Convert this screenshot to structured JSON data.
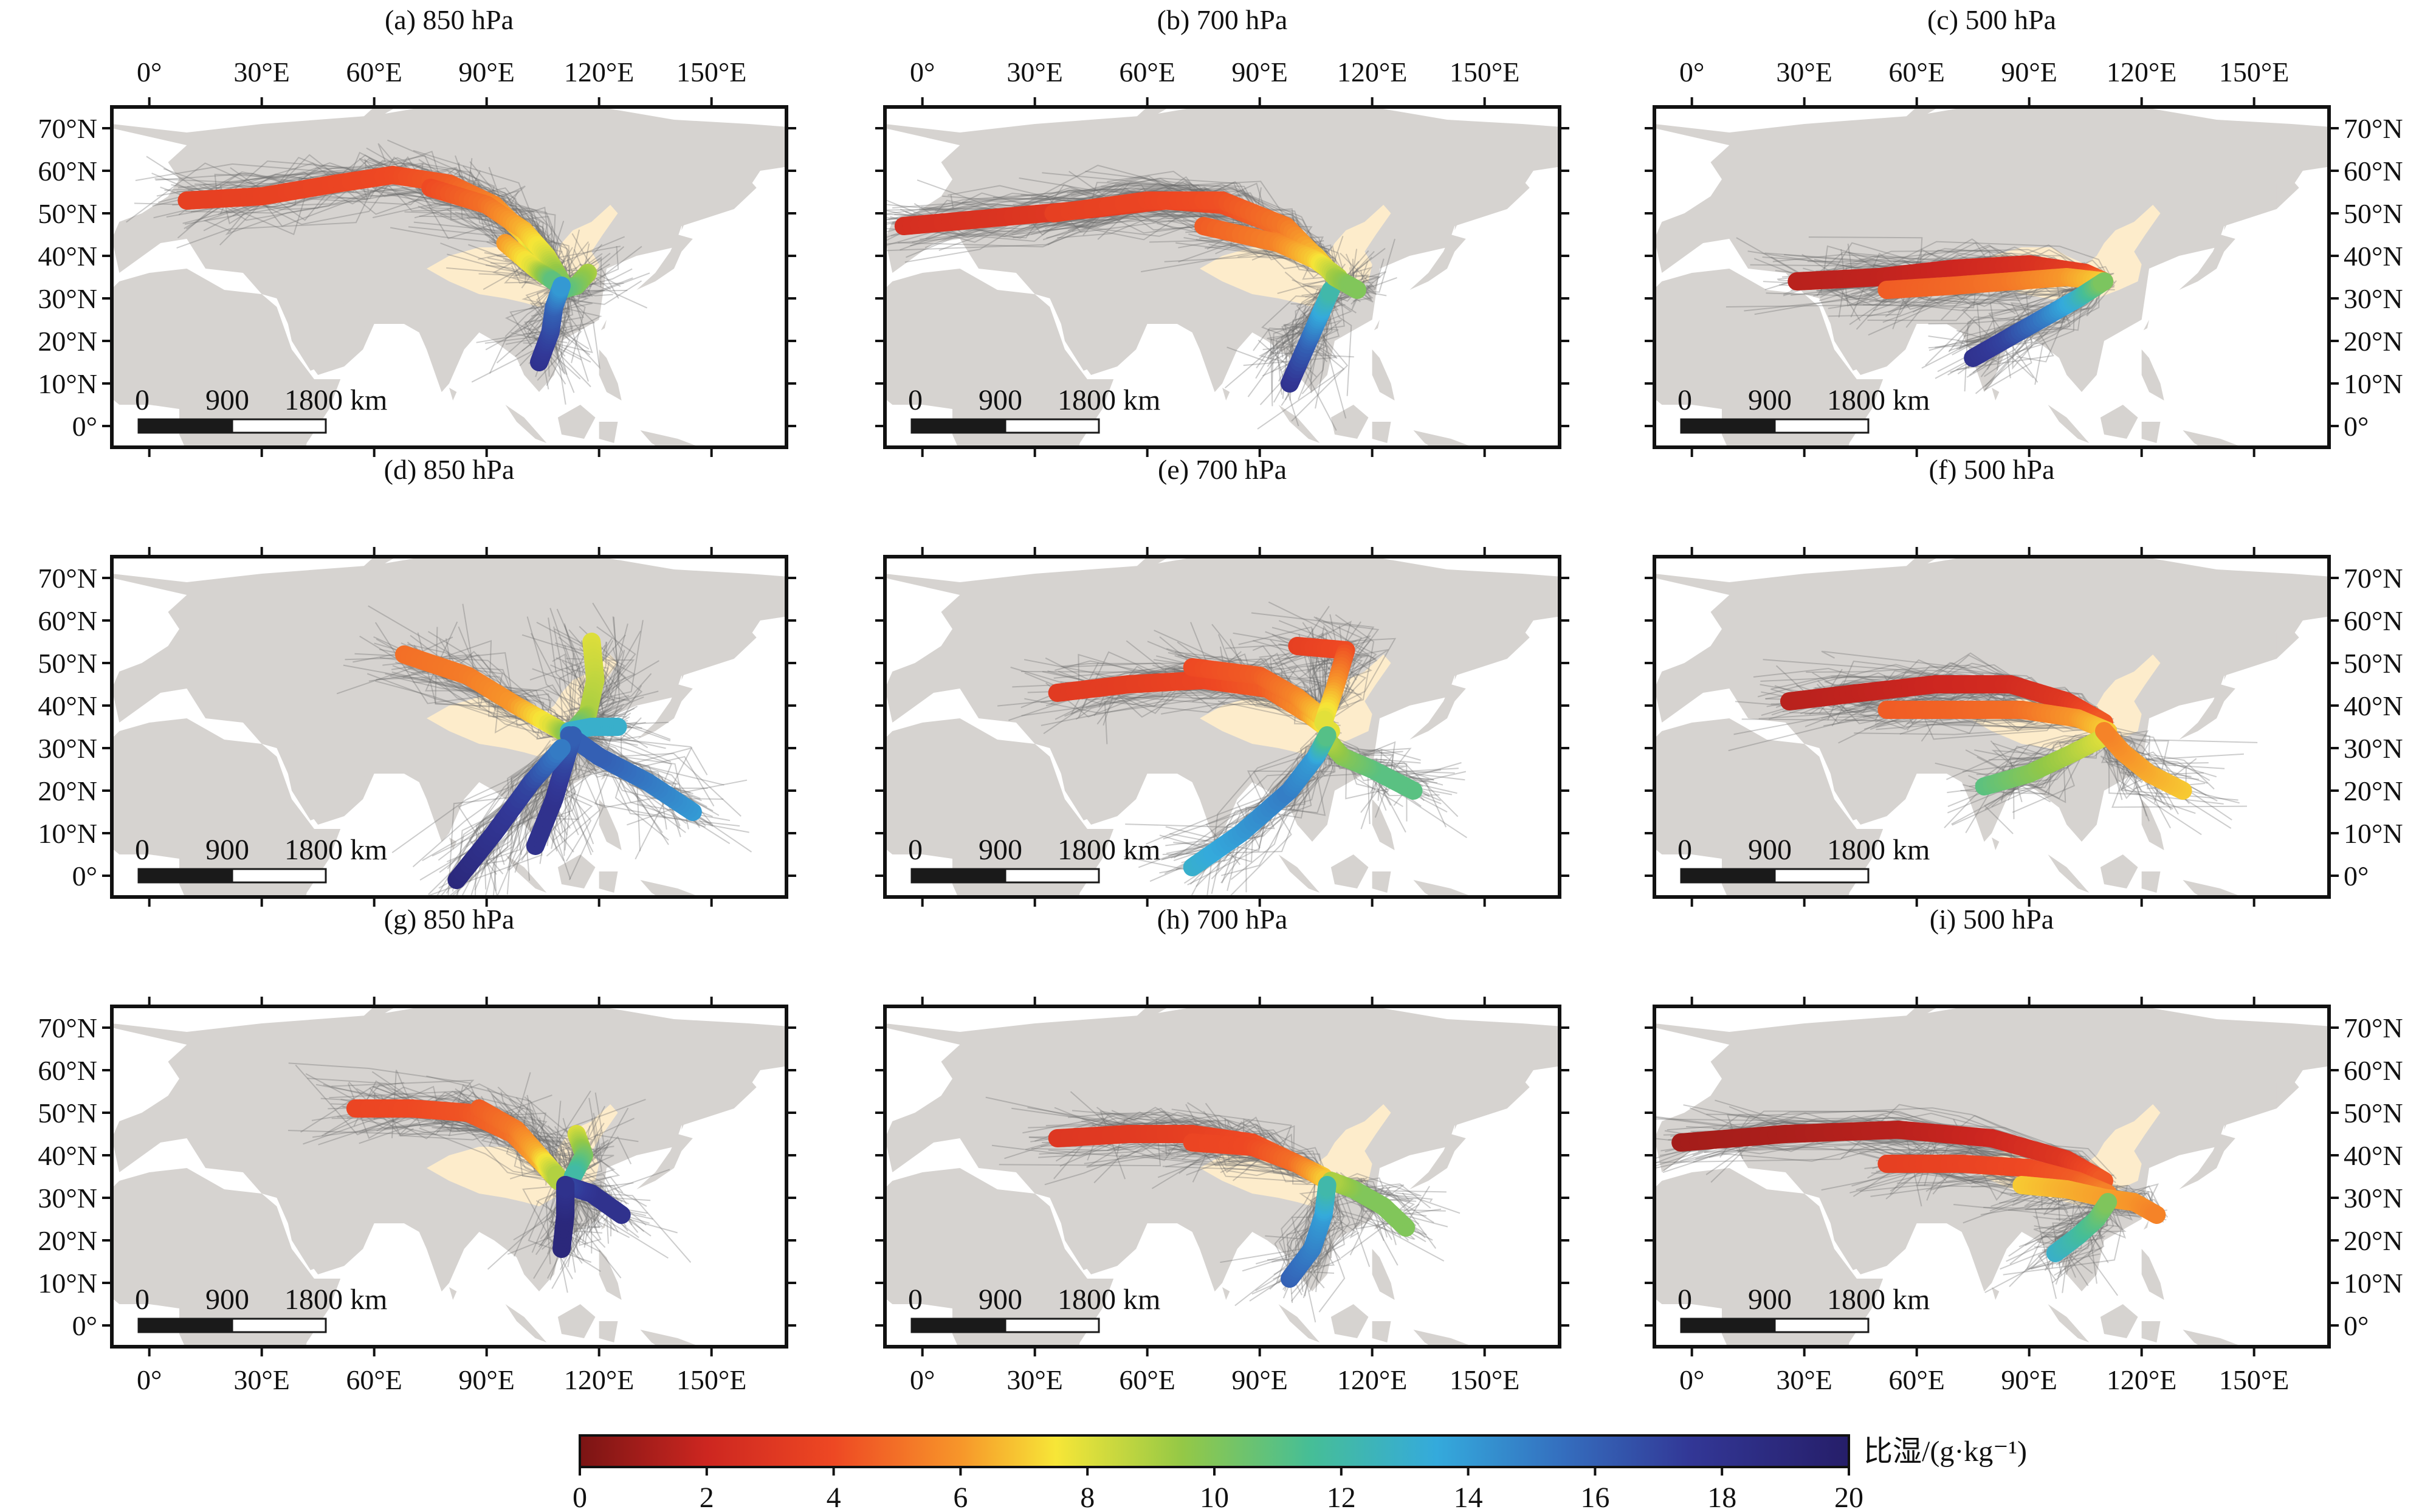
{
  "panels": [
    {
      "title": "(a) 850 hPa"
    },
    {
      "title": "(b) 700 hPa"
    },
    {
      "title": "(c) 500 hPa"
    },
    {
      "title": "(d) 850 hPa"
    },
    {
      "title": "(e) 700 hPa"
    },
    {
      "title": "(f) 500 hPa"
    },
    {
      "title": "(g) 850 hPa"
    },
    {
      "title": "(h) 700 hPa"
    },
    {
      "title": "(i) 500 hPa"
    }
  ],
  "lon_ticks": [
    "0°",
    "30°E",
    "60°E",
    "90°E",
    "120°E",
    "150°E"
  ],
  "lat_ticks": [
    "0°",
    "10°N",
    "20°N",
    "30°N",
    "40°N",
    "50°N",
    "60°N",
    "70°N"
  ],
  "scale_bar": [
    "0",
    "900",
    "1800 km"
  ],
  "colorbar": {
    "title": "比湿/(g·kg⁻¹)",
    "ticks": [
      "0",
      "2",
      "4",
      "6",
      "8",
      "10",
      "12",
      "14",
      "16",
      "18",
      "20"
    ],
    "min": 0,
    "max": 20
  },
  "colors": {
    "land": "#d6d3d0",
    "study_region": "#fdeccb",
    "trajectory_gray": "#6e6e6e",
    "frame": "#111111"
  },
  "cluster_paths": [
    [
      {
        "pts": [
          [
            10,
            53
          ],
          [
            30,
            54
          ],
          [
            50,
            57
          ],
          [
            65,
            59
          ],
          [
            80,
            57
          ],
          [
            92,
            52
          ],
          [
            100,
            45
          ],
          [
            106,
            38
          ],
          [
            110,
            33
          ]
        ],
        "q": [
          3.5,
          3.6,
          3.8,
          4,
          4.5,
          5.5,
          7,
          9,
          11
        ]
      },
      {
        "pts": [
          [
            75,
            56
          ],
          [
            90,
            52
          ],
          [
            100,
            46
          ],
          [
            106,
            40
          ],
          [
            110,
            34
          ]
        ],
        "q": [
          4,
          5,
          6.5,
          8,
          10
        ]
      },
      {
        "pts": [
          [
            95,
            43
          ],
          [
            103,
            37
          ],
          [
            108,
            34
          ]
        ],
        "q": [
          6,
          8,
          11
        ]
      },
      {
        "pts": [
          [
            117,
            36
          ],
          [
            114,
            33
          ],
          [
            110,
            32
          ]
        ],
        "q": [
          9,
          10,
          11
        ]
      },
      {
        "pts": [
          [
            104,
            15
          ],
          [
            107,
            22
          ],
          [
            108,
            28
          ],
          [
            110,
            33
          ]
        ],
        "q": [
          18,
          17,
          16,
          14
        ]
      }
    ],
    [
      {
        "pts": [
          [
            -5,
            47
          ],
          [
            20,
            49
          ],
          [
            45,
            51
          ],
          [
            65,
            53
          ],
          [
            80,
            52
          ],
          [
            95,
            47
          ],
          [
            105,
            40
          ],
          [
            110,
            35
          ]
        ],
        "q": [
          2.5,
          2.8,
          3.2,
          3.6,
          4,
          5,
          7,
          9
        ]
      },
      {
        "pts": [
          [
            35,
            50
          ],
          [
            60,
            53
          ],
          [
            80,
            53
          ],
          [
            97,
            47
          ],
          [
            107,
            38
          ]
        ],
        "q": [
          3.5,
          3.8,
          4.2,
          5.2,
          7
        ]
      },
      {
        "pts": [
          [
            75,
            47
          ],
          [
            95,
            43
          ],
          [
            105,
            39
          ],
          [
            111,
            35
          ]
        ],
        "q": [
          4.5,
          5.5,
          7,
          9
        ]
      },
      {
        "pts": [
          [
            98,
            10
          ],
          [
            103,
            20
          ],
          [
            106,
            26
          ],
          [
            109,
            32
          ]
        ],
        "q": [
          18,
          16,
          14,
          12
        ]
      },
      {
        "pts": [
          [
            110,
            35
          ],
          [
            114,
            33
          ],
          [
            116,
            32
          ]
        ],
        "q": [
          9,
          10,
          10
        ]
      }
    ],
    [
      {
        "pts": [
          [
            28,
            34
          ],
          [
            50,
            35
          ],
          [
            70,
            37
          ],
          [
            90,
            38
          ],
          [
            105,
            36
          ],
          [
            110,
            34
          ]
        ],
        "q": [
          1.5,
          1.7,
          2,
          2.6,
          3.5,
          5
        ]
      },
      {
        "pts": [
          [
            52,
            32
          ],
          [
            70,
            33
          ],
          [
            85,
            34
          ],
          [
            100,
            35
          ],
          [
            110,
            34
          ]
        ],
        "q": [
          4.5,
          4.8,
          5.2,
          6,
          7
        ]
      },
      {
        "pts": [
          [
            75,
            16
          ],
          [
            85,
            21
          ],
          [
            95,
            26
          ],
          [
            103,
            30
          ],
          [
            110,
            34
          ]
        ],
        "q": [
          18,
          17,
          15,
          13,
          10
        ]
      }
    ],
    [
      {
        "pts": [
          [
            68,
            52
          ],
          [
            85,
            47
          ],
          [
            98,
            40
          ],
          [
            108,
            35
          ],
          [
            112,
            33
          ]
        ],
        "q": [
          5,
          5.3,
          6,
          8,
          10
        ]
      },
      {
        "pts": [
          [
            118,
            55
          ],
          [
            119,
            46
          ],
          [
            117,
            38
          ],
          [
            113,
            34
          ]
        ],
        "q": [
          8,
          8.5,
          9,
          11
        ]
      },
      {
        "pts": [
          [
            125,
            35
          ],
          [
            118,
            35
          ],
          [
            112,
            34
          ]
        ],
        "q": [
          13,
          13,
          13
        ]
      },
      {
        "pts": [
          [
            145,
            15
          ],
          [
            133,
            22
          ],
          [
            120,
            28
          ],
          [
            112,
            33
          ]
        ],
        "q": [
          14,
          15,
          16,
          16
        ]
      },
      {
        "pts": [
          [
            103,
            7
          ],
          [
            108,
            18
          ],
          [
            111,
            27
          ],
          [
            113,
            33
          ]
        ],
        "q": [
          18,
          18,
          17,
          16
        ]
      },
      {
        "pts": [
          [
            82,
            -1
          ],
          [
            92,
            10
          ],
          [
            102,
            22
          ],
          [
            110,
            30
          ]
        ],
        "q": [
          19,
          18,
          17,
          15
        ]
      }
    ],
    [
      {
        "pts": [
          [
            36,
            43
          ],
          [
            55,
            45
          ],
          [
            75,
            46
          ],
          [
            92,
            44
          ],
          [
            103,
            38
          ],
          [
            109,
            34
          ]
        ],
        "q": [
          3.2,
          3.4,
          3.8,
          4.5,
          6,
          8
        ]
      },
      {
        "pts": [
          [
            72,
            49
          ],
          [
            90,
            47
          ],
          [
            100,
            42
          ],
          [
            107,
            37
          ]
        ],
        "q": [
          4,
          4.5,
          5.5,
          7
        ]
      },
      {
        "pts": [
          [
            100,
            54
          ],
          [
            113,
            53
          ],
          [
            110,
            44
          ],
          [
            107,
            36
          ]
        ],
        "q": [
          3.5,
          4,
          6,
          8
        ]
      },
      {
        "pts": [
          [
            131,
            20
          ],
          [
            120,
            25
          ],
          [
            112,
            28
          ],
          [
            108,
            32
          ]
        ],
        "q": [
          11,
          11,
          10,
          9
        ]
      },
      {
        "pts": [
          [
            72,
            2
          ],
          [
            85,
            10
          ],
          [
            98,
            20
          ],
          [
            105,
            28
          ],
          [
            108,
            33
          ]
        ],
        "q": [
          13,
          14,
          15,
          14,
          11
        ]
      }
    ],
    [
      {
        "pts": [
          [
            26,
            41
          ],
          [
            45,
            43
          ],
          [
            65,
            45
          ],
          [
            85,
            45
          ],
          [
            100,
            41
          ],
          [
            110,
            36
          ]
        ],
        "q": [
          1.5,
          1.7,
          2,
          2.3,
          3,
          4.5
        ]
      },
      {
        "pts": [
          [
            52,
            39
          ],
          [
            70,
            39
          ],
          [
            88,
            39
          ],
          [
            103,
            37
          ],
          [
            111,
            34
          ]
        ],
        "q": [
          4.5,
          4.7,
          5,
          6,
          7
        ]
      },
      {
        "pts": [
          [
            78,
            21
          ],
          [
            90,
            24
          ],
          [
            102,
            29
          ],
          [
            111,
            33
          ]
        ],
        "q": [
          11,
          10,
          9,
          8
        ]
      },
      {
        "pts": [
          [
            131,
            20
          ],
          [
            122,
            24
          ],
          [
            115,
            29
          ],
          [
            110,
            34
          ]
        ],
        "q": [
          7,
          6.5,
          6,
          5.5
        ]
      }
    ],
    [
      {
        "pts": [
          [
            55,
            51
          ],
          [
            70,
            51
          ],
          [
            85,
            50
          ],
          [
            97,
            45
          ],
          [
            105,
            38
          ],
          [
            109,
            34
          ]
        ],
        "q": [
          3.8,
          4,
          4.3,
          5,
          6.5,
          9
        ]
      },
      {
        "pts": [
          [
            88,
            51
          ],
          [
            98,
            46
          ],
          [
            104,
            40
          ],
          [
            109,
            35
          ]
        ],
        "q": [
          4.5,
          5.2,
          6.5,
          9
        ]
      },
      {
        "pts": [
          [
            114,
            45
          ],
          [
            116,
            40
          ],
          [
            113,
            35
          ]
        ],
        "q": [
          8,
          10,
          12
        ]
      },
      {
        "pts": [
          [
            126,
            26
          ],
          [
            118,
            31
          ],
          [
            111,
            33
          ]
        ],
        "q": [
          18,
          18,
          17
        ]
      },
      {
        "pts": [
          [
            110,
            18
          ],
          [
            111,
            26
          ],
          [
            111,
            33
          ]
        ],
        "q": [
          19,
          19,
          18
        ]
      }
    ],
    [
      {
        "pts": [
          [
            36,
            44
          ],
          [
            55,
            45
          ],
          [
            72,
            45
          ],
          [
            88,
            43
          ],
          [
            100,
            38
          ],
          [
            107,
            35
          ]
        ],
        "q": [
          3,
          3.2,
          3.5,
          4,
          5,
          7
        ]
      },
      {
        "pts": [
          [
            72,
            43
          ],
          [
            88,
            42
          ],
          [
            100,
            38
          ],
          [
            108,
            34
          ]
        ],
        "q": [
          3.8,
          4,
          5,
          7
        ]
      },
      {
        "pts": [
          [
            129,
            23
          ],
          [
            123,
            28
          ],
          [
            115,
            32
          ],
          [
            109,
            34
          ]
        ],
        "q": [
          10,
          10,
          10,
          9
        ]
      },
      {
        "pts": [
          [
            98,
            11
          ],
          [
            104,
            18
          ],
          [
            107,
            26
          ],
          [
            108,
            33
          ]
        ],
        "q": [
          16,
          15,
          14,
          12
        ]
      }
    ],
    [
      {
        "pts": [
          [
            -3,
            43
          ],
          [
            25,
            45
          ],
          [
            55,
            46
          ],
          [
            80,
            44
          ],
          [
            100,
            39
          ],
          [
            110,
            34
          ]
        ],
        "q": [
          1,
          1.2,
          1.5,
          2,
          3,
          4.5
        ]
      },
      {
        "pts": [
          [
            52,
            38
          ],
          [
            72,
            38
          ],
          [
            90,
            37
          ],
          [
            103,
            34
          ],
          [
            111,
            31
          ]
        ],
        "q": [
          3.5,
          3.7,
          4,
          4.5,
          5.5
        ]
      },
      {
        "pts": [
          [
            88,
            33
          ],
          [
            100,
            32
          ],
          [
            110,
            30
          ],
          [
            118,
            29
          ],
          [
            124,
            26
          ]
        ],
        "q": [
          7,
          6.5,
          6.2,
          6,
          5.5
        ]
      },
      {
        "pts": [
          [
            97,
            17
          ],
          [
            103,
            21
          ],
          [
            108,
            25
          ],
          [
            111,
            29
          ]
        ],
        "q": [
          13,
          12,
          11,
          10
        ]
      }
    ]
  ]
}
